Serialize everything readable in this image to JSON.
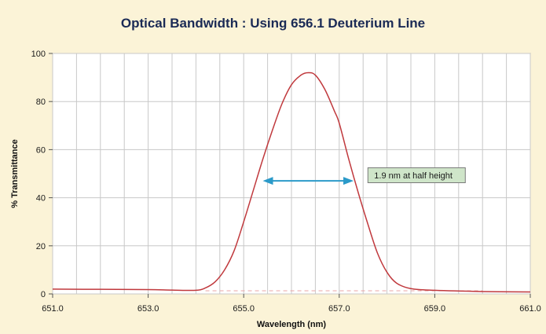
{
  "chart_data": {
    "type": "line",
    "title": "Optical Bandwidth : Using 656.1 Deuterium Line",
    "xlabel": "Wavelength (nm)",
    "ylabel": "% Transmittance",
    "xlim": [
      651.0,
      661.0
    ],
    "ylim": [
      0,
      100
    ],
    "x_tick_labels": [
      "651.0",
      "653.0",
      "655.0",
      "657.0",
      "659.0",
      "661.0"
    ],
    "y_tick_labels": [
      "0",
      "20",
      "40",
      "60",
      "80",
      "100"
    ],
    "grid": true,
    "legend": "none",
    "series": [
      {
        "color": "#c0393d",
        "x": [
          651.0,
          652.0,
          653.0,
          653.5,
          654.0,
          654.2,
          654.4,
          654.6,
          654.8,
          655.0,
          655.2,
          655.4,
          655.6,
          655.8,
          656.0,
          656.2,
          656.35,
          656.5,
          656.7,
          656.9,
          657.0,
          657.2,
          657.4,
          657.6,
          657.8,
          658.0,
          658.2,
          658.5,
          659.0,
          660.0,
          661.0
        ],
        "y": [
          2.0,
          1.9,
          1.8,
          1.6,
          1.5,
          2.5,
          5.0,
          10.0,
          18.0,
          30.0,
          43.0,
          56.0,
          68.0,
          79.0,
          87.0,
          91.0,
          92.0,
          91.0,
          85.0,
          76.0,
          71.0,
          56.0,
          42.0,
          29.0,
          17.0,
          9.0,
          4.5,
          2.2,
          1.5,
          1.0,
          0.8
        ]
      }
    ],
    "baseline": {
      "y": 1.3,
      "color": "#e8a6a6"
    },
    "annotation": {
      "text": "1.9 nm at half height",
      "arrow_from": 655.4,
      "arrow_to": 657.3,
      "arrow_y": 47,
      "arrow_color": "#2b9ac9",
      "box_color": "#cfe5c9"
    }
  }
}
